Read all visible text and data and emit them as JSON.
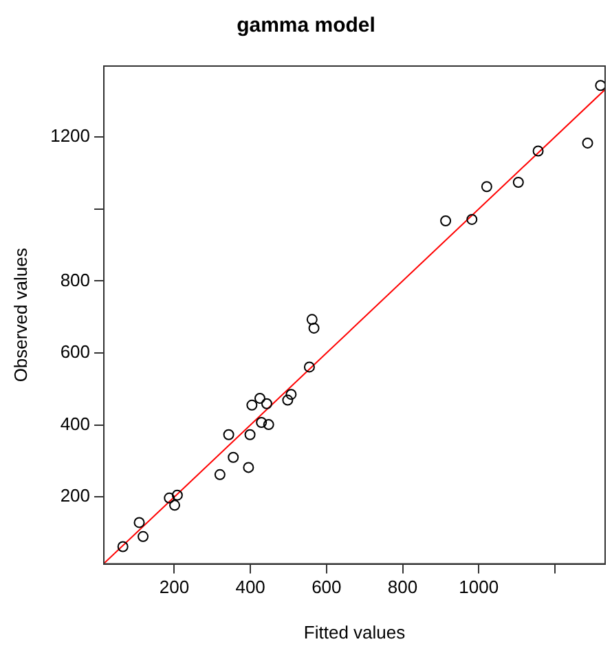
{
  "chart_data": {
    "type": "scatter",
    "title": "gamma model",
    "xlabel": "Fitted values",
    "ylabel": "Observed values",
    "xlim": [
      15,
      1332
    ],
    "ylim": [
      14,
      1397
    ],
    "xticks": [
      200,
      400,
      600,
      800,
      1000,
      {
        "value": 1200,
        "label": null
      }
    ],
    "yticks": [
      200,
      400,
      600,
      800,
      {
        "value": 1000,
        "label": null
      },
      1200
    ],
    "grid": false,
    "legend": false,
    "marker": "circle",
    "series": [
      {
        "color": "#000000",
        "x": [
          65,
          108,
          118,
          187,
          201,
          208,
          320,
          343,
          355,
          395,
          399,
          404,
          425,
          429,
          443,
          448,
          498,
          507,
          555,
          567,
          562,
          913,
          982,
          1021,
          1104,
          1156,
          1286,
          1320
        ],
        "values": [
          62,
          129,
          90,
          197,
          177,
          205,
          262,
          373,
          310,
          282,
          373,
          455,
          474,
          407,
          459,
          401,
          469,
          485,
          561,
          669,
          693,
          967,
          971,
          1062,
          1074,
          1161,
          1183,
          1343
        ]
      },
      {
        "type": "line",
        "color": "#ff0000",
        "marker": "none",
        "x": [
          15,
          1332
        ],
        "values": [
          15,
          1332
        ]
      }
    ]
  }
}
